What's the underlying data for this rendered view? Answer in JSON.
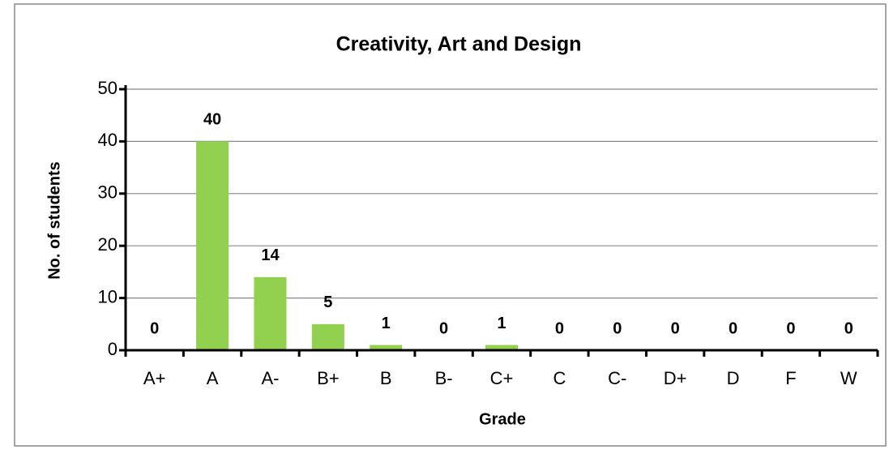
{
  "chart_data": {
    "type": "bar",
    "title": "Creativity, Art and Design",
    "x_label": "Grade",
    "y_label": "No. of students",
    "categories": [
      "A+",
      "A",
      "A-",
      "B+",
      "B",
      "B-",
      "C+",
      "C",
      "C-",
      "D+",
      "D",
      "F",
      "W"
    ],
    "values": [
      0,
      40,
      14,
      5,
      1,
      0,
      1,
      0,
      0,
      0,
      0,
      0,
      0
    ],
    "color": "#92d050",
    "ylim": [
      0,
      50
    ],
    "yticks": [
      0,
      10,
      20,
      30,
      40,
      50
    ],
    "grid": true
  }
}
